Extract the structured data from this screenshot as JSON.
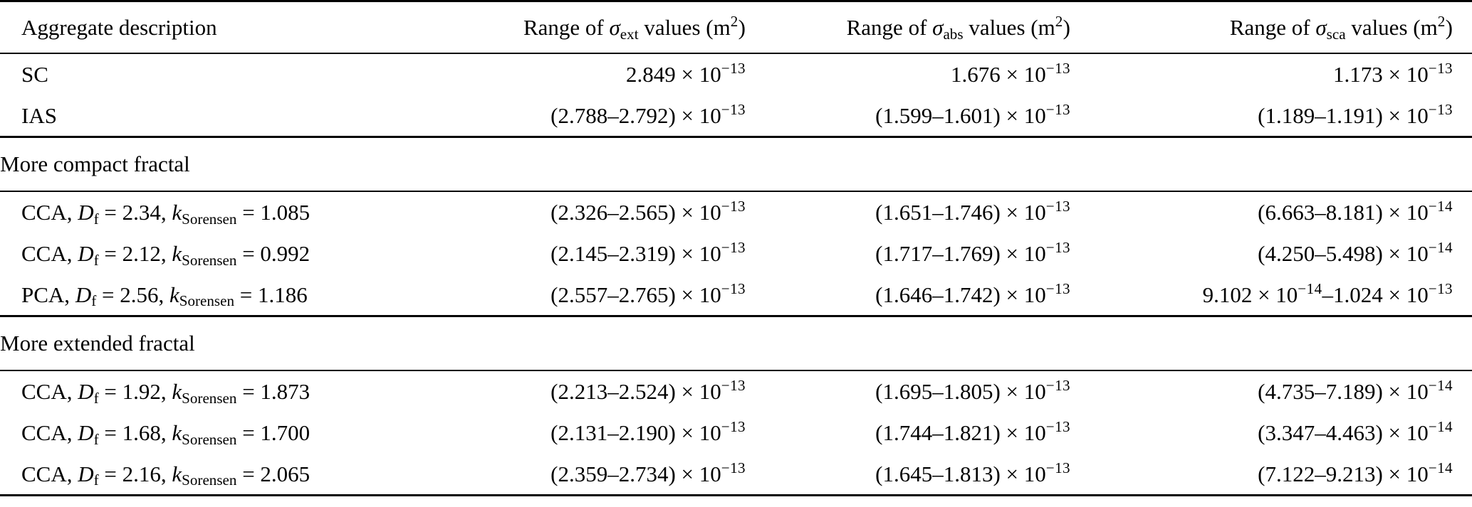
{
  "page": {
    "background": "#ffffff",
    "text_color": "#000000",
    "rule_color": "#000000"
  },
  "table": {
    "columns": [
      {
        "key": "aggregate-description",
        "align": "left",
        "segments": [
          {
            "t": "Aggregate description"
          }
        ]
      },
      {
        "key": "sigma-ext-range",
        "align": "right",
        "segments": [
          {
            "t": "Range of "
          },
          {
            "i": "σ"
          },
          {
            "sub": "ext"
          },
          {
            "t": " values (m"
          },
          {
            "sup": "2"
          },
          {
            "t": ")"
          }
        ]
      },
      {
        "key": "sigma-abs-range",
        "align": "right",
        "segments": [
          {
            "t": "Range of "
          },
          {
            "i": "σ"
          },
          {
            "sub": "abs"
          },
          {
            "t": " values (m"
          },
          {
            "sup": "2"
          },
          {
            "t": ")"
          }
        ]
      },
      {
        "key": "sigma-sca-range",
        "align": "right",
        "segments": [
          {
            "t": "Range of "
          },
          {
            "i": "σ"
          },
          {
            "sub": "sca"
          },
          {
            "t": " values (m"
          },
          {
            "sup": "2"
          },
          {
            "t": ")"
          }
        ]
      }
    ],
    "rows": [
      {
        "type": "data",
        "cells": [
          [
            {
              "t": "SC"
            }
          ],
          [
            {
              "t": "2.849 × 10"
            },
            {
              "sup": "−13"
            }
          ],
          [
            {
              "t": "1.676 × 10"
            },
            {
              "sup": "−13"
            }
          ],
          [
            {
              "t": "1.173 × 10"
            },
            {
              "sup": "−13"
            }
          ]
        ]
      },
      {
        "type": "data",
        "cells": [
          [
            {
              "t": "IAS"
            }
          ],
          [
            {
              "t": "(2.788–2.792) × 10"
            },
            {
              "sup": "−13"
            }
          ],
          [
            {
              "t": "(1.599–1.601) × 10"
            },
            {
              "sup": "−13"
            }
          ],
          [
            {
              "t": "(1.189–1.191) × 10"
            },
            {
              "sup": "−13"
            }
          ]
        ]
      },
      {
        "type": "section",
        "label": [
          {
            "t": "More compact fractal"
          }
        ]
      },
      {
        "type": "data",
        "cells": [
          [
            {
              "t": "CCA, "
            },
            {
              "i": "D"
            },
            {
              "sub": "f"
            },
            {
              "t": " = 2.34, "
            },
            {
              "i": "k"
            },
            {
              "sub": "Sorensen"
            },
            {
              "t": " = 1.085"
            }
          ],
          [
            {
              "t": "(2.326–2.565) × 10"
            },
            {
              "sup": "−13"
            }
          ],
          [
            {
              "t": "(1.651–1.746) × 10"
            },
            {
              "sup": "−13"
            }
          ],
          [
            {
              "t": "(6.663–8.181) × 10"
            },
            {
              "sup": "−14"
            }
          ]
        ]
      },
      {
        "type": "data",
        "cells": [
          [
            {
              "t": "CCA, "
            },
            {
              "i": "D"
            },
            {
              "sub": "f"
            },
            {
              "t": " = 2.12, "
            },
            {
              "i": "k"
            },
            {
              "sub": "Sorensen"
            },
            {
              "t": " = 0.992"
            }
          ],
          [
            {
              "t": "(2.145–2.319) × 10"
            },
            {
              "sup": "−13"
            }
          ],
          [
            {
              "t": "(1.717–1.769) × 10"
            },
            {
              "sup": "−13"
            }
          ],
          [
            {
              "t": "(4.250–5.498) × 10"
            },
            {
              "sup": "−14"
            }
          ]
        ]
      },
      {
        "type": "data",
        "cells": [
          [
            {
              "t": "PCA, "
            },
            {
              "i": "D"
            },
            {
              "sub": "f"
            },
            {
              "t": " = 2.56, "
            },
            {
              "i": "k"
            },
            {
              "sub": "Sorensen"
            },
            {
              "t": " = 1.186"
            }
          ],
          [
            {
              "t": "(2.557–2.765) × 10"
            },
            {
              "sup": "−13"
            }
          ],
          [
            {
              "t": "(1.646–1.742) × 10"
            },
            {
              "sup": "−13"
            }
          ],
          [
            {
              "t": "9.102 × 10"
            },
            {
              "sup": "−14"
            },
            {
              "t": "–1.024 × 10"
            },
            {
              "sup": "−13"
            }
          ]
        ]
      },
      {
        "type": "section",
        "label": [
          {
            "t": "More extended fractal"
          }
        ]
      },
      {
        "type": "data",
        "cells": [
          [
            {
              "t": "CCA, "
            },
            {
              "i": "D"
            },
            {
              "sub": "f"
            },
            {
              "t": " = 1.92, "
            },
            {
              "i": "k"
            },
            {
              "sub": "Sorensen"
            },
            {
              "t": " = 1.873"
            }
          ],
          [
            {
              "t": "(2.213–2.524) × 10"
            },
            {
              "sup": "−13"
            }
          ],
          [
            {
              "t": "(1.695–1.805) × 10"
            },
            {
              "sup": "−13"
            }
          ],
          [
            {
              "t": "(4.735–7.189) × 10"
            },
            {
              "sup": "−14"
            }
          ]
        ]
      },
      {
        "type": "data",
        "cells": [
          [
            {
              "t": "CCA, "
            },
            {
              "i": "D"
            },
            {
              "sub": "f"
            },
            {
              "t": " = 1.68, "
            },
            {
              "i": "k"
            },
            {
              "sub": "Sorensen"
            },
            {
              "t": " = 1.700"
            }
          ],
          [
            {
              "t": "(2.131–2.190) × 10"
            },
            {
              "sup": "−13"
            }
          ],
          [
            {
              "t": "(1.744–1.821) × 10"
            },
            {
              "sup": "−13"
            }
          ],
          [
            {
              "t": "(3.347–4.463) × 10"
            },
            {
              "sup": "−14"
            }
          ]
        ]
      },
      {
        "type": "data",
        "cells": [
          [
            {
              "t": "CCA, "
            },
            {
              "i": "D"
            },
            {
              "sub": "f"
            },
            {
              "t": " = 2.16, "
            },
            {
              "i": "k"
            },
            {
              "sub": "Sorensen"
            },
            {
              "t": " = 2.065"
            }
          ],
          [
            {
              "t": "(2.359–2.734) × 10"
            },
            {
              "sup": "−13"
            }
          ],
          [
            {
              "t": "(1.645–1.813) × 10"
            },
            {
              "sup": "−13"
            }
          ],
          [
            {
              "t": "(7.122–9.213) × 10"
            },
            {
              "sup": "−14"
            }
          ]
        ]
      }
    ]
  }
}
